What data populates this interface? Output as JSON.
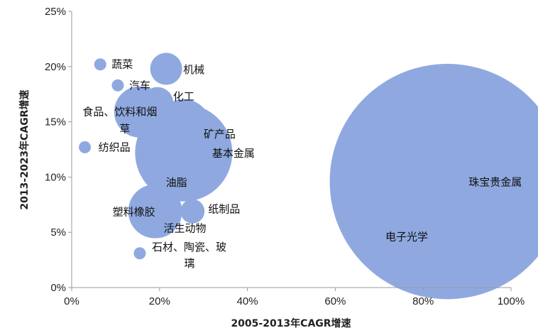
{
  "chart_data": {
    "type": "scatter",
    "title": "",
    "xlabel": "2005-2013年CAGR增速",
    "ylabel": "2013-2023年CAGR增速",
    "xlim": [
      0,
      100
    ],
    "ylim": [
      0,
      25
    ],
    "x_ticks": [
      "0%",
      "20%",
      "40%",
      "60%",
      "80%",
      "100%"
    ],
    "y_ticks": [
      "0%",
      "5%",
      "10%",
      "15%",
      "20%",
      "25%"
    ],
    "grid": false,
    "legend": "none",
    "bubble_color": "#8FA9E0",
    "points": [
      {
        "label": "蔬菜",
        "x": 6.5,
        "y": 20.2,
        "size": 1
      },
      {
        "label": "机械",
        "x": 21.5,
        "y": 19.8,
        "size": 7
      },
      {
        "label": "汽车",
        "x": 10.5,
        "y": 18.3,
        "size": 1
      },
      {
        "label": "化工",
        "x": 19.5,
        "y": 16.7,
        "size": 7
      },
      {
        "label": "食品、饮料和烟草",
        "x": 15.5,
        "y": 15.9,
        "size": 18
      },
      {
        "label": "矿产品",
        "x": 25.5,
        "y": 14.6,
        "size": 20
      },
      {
        "label": "纺织品",
        "x": 3.0,
        "y": 12.7,
        "size": 1
      },
      {
        "label": "基本金属",
        "x": 25.5,
        "y": 12.2,
        "size": 65
      },
      {
        "label": "油脂",
        "x": 19.0,
        "y": 9.5,
        "size": 1
      },
      {
        "label": "塑料橡胶",
        "x": 19.0,
        "y": 6.9,
        "size": 20
      },
      {
        "label": "纸制品",
        "x": 27.5,
        "y": 6.9,
        "size": 4
      },
      {
        "label": "活生动物",
        "x": 23.5,
        "y": 6.6,
        "size": 1
      },
      {
        "label": "石材、陶瓷、玻璃",
        "x": 15.5,
        "y": 3.1,
        "size": 1
      },
      {
        "label": "珠宝贵金属",
        "x": 85.5,
        "y": 9.6,
        "size": 380
      },
      {
        "label": "电子光学",
        "x": 79.0,
        "y": 5.7,
        "size": 1
      }
    ]
  }
}
